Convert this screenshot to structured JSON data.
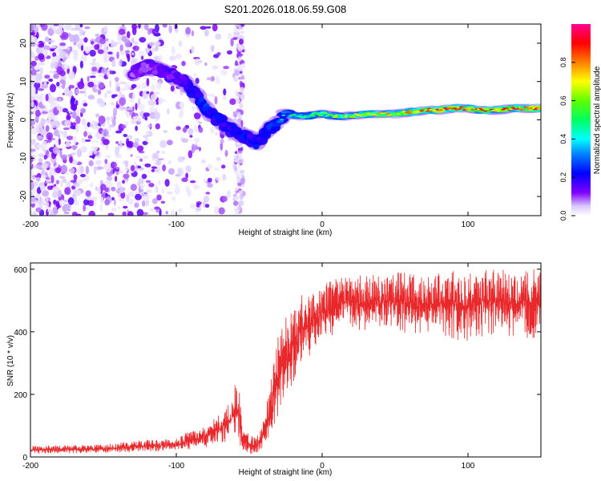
{
  "title": "S201.2026.018.06.59.G08",
  "chart_data": [
    {
      "type": "heatmap",
      "xlabel": "Height of straight line (km)",
      "ylabel": "Frequency (Hz)",
      "xlim": [
        -200,
        150
      ],
      "ylim": [
        -25,
        25
      ],
      "xticks": [
        -200,
        -100,
        0,
        100
      ],
      "yticks": [
        -20,
        -10,
        0,
        10,
        20
      ],
      "xtick_labels": [
        "-200",
        "-100",
        "0",
        "100"
      ],
      "ytick_labels": [
        "-20",
        "-10",
        "0",
        "10",
        "20"
      ],
      "colorbar": {
        "label": "Normalized spectral amplitude",
        "range": [
          0,
          1
        ],
        "ticks": [
          0.0,
          0.2,
          0.4,
          0.6,
          0.8
        ],
        "tick_labels": [
          "0.0",
          "0.2",
          "0.4",
          "0.6",
          "0.8"
        ],
        "colors": [
          "#ffffff",
          "#8000ff",
          "#0000ff",
          "#00ffff",
          "#00ff00",
          "#ffff00",
          "#ff8000",
          "#ff0000",
          "#ff0080"
        ]
      },
      "ridge": {
        "x": [
          -130,
          -120,
          -110,
          -100,
          -95,
          -90,
          -85,
          -80,
          -75,
          -70,
          -65,
          -60,
          -55,
          -50,
          -45,
          -40,
          -35,
          -30,
          -25,
          -20,
          -10,
          0,
          10,
          20,
          30,
          40,
          50,
          60,
          70,
          80,
          90,
          100,
          110,
          120,
          130,
          140,
          150
        ],
        "freq": [
          12,
          14,
          13,
          11,
          10,
          8,
          6,
          3,
          1,
          0,
          -2,
          -3,
          -4,
          -5,
          -6,
          -4,
          -2,
          -1,
          2,
          1,
          1,
          1.5,
          1,
          1,
          1.5,
          1.5,
          1.5,
          2,
          2.5,
          2.5,
          3,
          3,
          2.5,
          2.5,
          3,
          3,
          3
        ],
        "amplitude": [
          0.15,
          0.15,
          0.2,
          0.2,
          0.25,
          0.3,
          0.3,
          0.35,
          0.3,
          0.3,
          0.3,
          0.3,
          0.3,
          0.3,
          0.3,
          0.3,
          0.35,
          0.4,
          0.4,
          0.5,
          0.55,
          0.55,
          0.6,
          0.65,
          0.7,
          0.75,
          0.7,
          0.75,
          0.8,
          0.85,
          0.85,
          0.85,
          0.8,
          0.85,
          0.85,
          0.9,
          0.9
        ]
      }
    },
    {
      "type": "line",
      "xlabel": "Height of straight line (km)",
      "ylabel": "SNR (10 * v/v)",
      "xlim": [
        -200,
        150
      ],
      "ylim": [
        0,
        620
      ],
      "xticks": [
        -200,
        -100,
        0,
        100
      ],
      "yticks": [
        0,
        200,
        400,
        600
      ],
      "xtick_labels": [
        "-200",
        "-100",
        "0",
        "100"
      ],
      "ytick_labels": [
        "0",
        "200",
        "400",
        "600"
      ],
      "color": "#e8282a",
      "envelope": {
        "x": [
          -200,
          -150,
          -120,
          -100,
          -90,
          -80,
          -70,
          -65,
          -60,
          -57,
          -55,
          -50,
          -45,
          -40,
          -35,
          -30,
          -25,
          -20,
          -15,
          -10,
          -5,
          0,
          5,
          10,
          15,
          20,
          30,
          40,
          50,
          60,
          80,
          100,
          120,
          140,
          150
        ],
        "low": [
          10,
          10,
          15,
          15,
          20,
          25,
          35,
          45,
          55,
          40,
          15,
          10,
          10,
          20,
          60,
          120,
          170,
          230,
          280,
          300,
          330,
          360,
          380,
          400,
          410,
          410,
          400,
          400,
          390,
          380,
          380,
          370,
          380,
          370,
          370
        ],
        "high": [
          35,
          40,
          55,
          60,
          85,
          100,
          140,
          160,
          240,
          230,
          100,
          70,
          60,
          120,
          250,
          400,
          460,
          470,
          520,
          510,
          540,
          560,
          560,
          570,
          585,
          580,
          580,
          590,
          595,
          590,
          590,
          600,
          600,
          610,
          590
        ]
      }
    }
  ]
}
